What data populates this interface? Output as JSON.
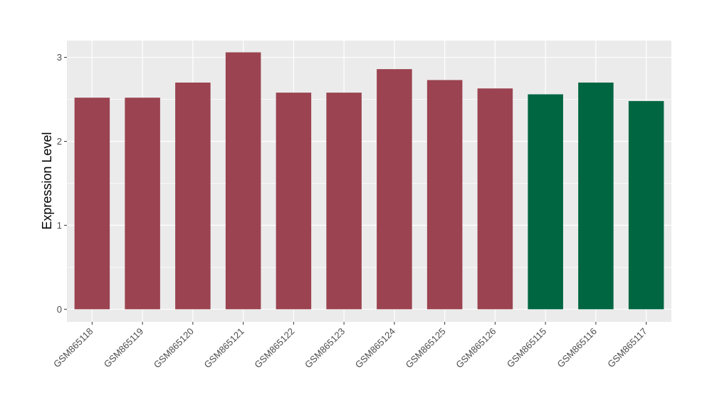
{
  "chart_data": {
    "type": "bar",
    "title": "",
    "xlabel": "",
    "ylabel": "Expression Level",
    "ylim": [
      -0.15,
      3.2
    ],
    "yticks": [
      0,
      1,
      2,
      3
    ],
    "grid": true,
    "legend": "none",
    "colors": {
      "group_a": "#9b4350",
      "group_b": "#006642",
      "panel": "#ebebeb",
      "gridline": "#ffffff"
    },
    "categories": [
      "GSM865118",
      "GSM865119",
      "GSM865120",
      "GSM865121",
      "GSM865122",
      "GSM865123",
      "GSM865124",
      "GSM865125",
      "GSM865126",
      "GSM865115",
      "GSM865116",
      "GSM865117"
    ],
    "values": [
      2.52,
      2.52,
      2.7,
      3.06,
      2.58,
      2.58,
      2.86,
      2.73,
      2.63,
      2.56,
      2.7,
      2.48
    ],
    "groups": [
      "group_a",
      "group_a",
      "group_a",
      "group_a",
      "group_a",
      "group_a",
      "group_a",
      "group_a",
      "group_a",
      "group_b",
      "group_b",
      "group_b"
    ]
  }
}
